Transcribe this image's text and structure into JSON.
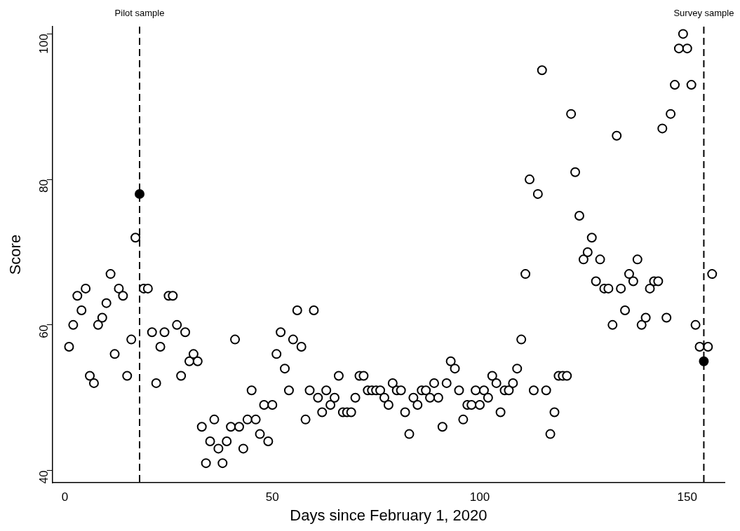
{
  "chart_data": {
    "type": "scatter",
    "xlabel": "Days since February 1, 2020",
    "ylabel": "Score",
    "xlim": [
      -3,
      159
    ],
    "xticks": [
      0,
      50,
      100,
      150
    ],
    "ylim": [
      38.3,
      101
    ],
    "yticks": [
      40,
      60,
      80,
      100
    ],
    "grid": false,
    "legend": false,
    "marker": "circle",
    "series": [
      {
        "color": "#000000",
        "x": [
          1,
          2,
          3,
          4,
          5,
          6,
          7,
          8,
          9,
          10,
          11,
          12,
          13,
          14,
          15,
          16,
          17,
          19,
          20,
          21,
          22,
          23,
          24,
          25,
          26,
          27,
          28,
          29,
          30,
          31,
          32,
          33,
          34,
          35,
          36,
          37,
          38,
          39,
          40,
          41,
          42,
          43,
          44,
          45,
          46,
          47,
          48,
          49,
          50,
          51,
          52,
          53,
          54,
          55,
          56,
          57,
          58,
          59,
          60,
          61,
          62,
          63,
          64,
          65,
          66,
          67,
          68,
          69,
          70,
          71,
          72,
          73,
          74,
          75,
          76,
          77,
          78,
          79,
          80,
          81,
          82,
          83,
          84,
          85,
          86,
          87,
          88,
          89,
          90,
          91,
          92,
          93,
          94,
          95,
          96,
          97,
          98,
          99,
          100,
          101,
          102,
          103,
          104,
          105,
          106,
          107,
          108,
          109,
          110,
          111,
          112,
          113,
          114,
          115,
          116,
          117,
          118,
          119,
          120,
          121,
          122,
          123,
          124,
          125,
          126,
          127,
          128,
          129,
          130,
          131,
          132,
          133,
          134,
          135,
          136,
          137,
          138,
          139,
          140,
          141,
          142,
          143,
          144,
          145,
          146,
          147,
          148,
          149,
          150,
          151,
          152,
          153,
          155,
          156
        ],
        "values": [
          57,
          60,
          64,
          62,
          65,
          53,
          52,
          60,
          61,
          63,
          67,
          56,
          65,
          64,
          53,
          58,
          72,
          65,
          65,
          59,
          52,
          57,
          59,
          64,
          64,
          60,
          53,
          59,
          55,
          56,
          55,
          46,
          41,
          44,
          47,
          43,
          41,
          44,
          46,
          58,
          46,
          43,
          47,
          51,
          47,
          45,
          49,
          44,
          49,
          56,
          59,
          54,
          51,
          58,
          62,
          57,
          47,
          51,
          62,
          50,
          48,
          51,
          49,
          50,
          53,
          48,
          48,
          48,
          50,
          53,
          53,
          51,
          51,
          51,
          51,
          50,
          49,
          52,
          51,
          51,
          48,
          45,
          50,
          49,
          51,
          51,
          50,
          52,
          50,
          46,
          52,
          55,
          54,
          51,
          47,
          49,
          49,
          51,
          49,
          51,
          50,
          53,
          52,
          48,
          51,
          51,
          52,
          54,
          58,
          67,
          80,
          51,
          78,
          95,
          51,
          45,
          48,
          53,
          53,
          53,
          89,
          81,
          75,
          69,
          70,
          72,
          66,
          69,
          65,
          65,
          60,
          86,
          65,
          62,
          67,
          66,
          69,
          60,
          61,
          65,
          66,
          66,
          87,
          61,
          89,
          93,
          98,
          100,
          98,
          93,
          60,
          57,
          57,
          67
        ]
      },
      {
        "color": "#000000",
        "x": [
          18,
          154
        ],
        "values": [
          78,
          55
        ]
      }
    ],
    "ref_lines": [
      {
        "axis": "x",
        "value": 18,
        "label": "Pilot sample",
        "line_style": "dashed"
      },
      {
        "axis": "x",
        "value": 154,
        "label": "Survey sample",
        "line_style": "dashed"
      }
    ]
  }
}
